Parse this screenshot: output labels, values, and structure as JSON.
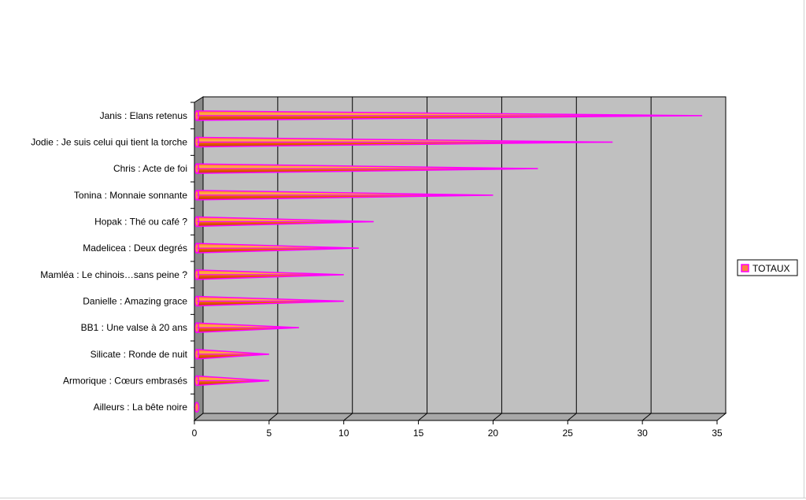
{
  "chart_data": {
    "type": "bar",
    "orientation": "horizontal",
    "style": "3d-cone",
    "categories": [
      "Janis : Elans retenus",
      "Jodie : Je suis celui qui tient la torche",
      "Chris : Acte de foi",
      "Tonina : Monnaie sonnante",
      "Hopak : Thé ou café ?",
      "Madelicea : Deux degrés",
      "Mamléa : Le chinois…sans peine ?",
      "Danielle : Amazing grace",
      "BB1 : Une valse à 20 ans",
      "Silicate : Ronde de nuit",
      "Armorique : Cœurs embrasés",
      "Ailleurs : La bête noire"
    ],
    "series": [
      {
        "name": "TOTAUX",
        "values": [
          34,
          28,
          23,
          20,
          12,
          11,
          10,
          10,
          7,
          5,
          5,
          0
        ]
      }
    ],
    "xticks": [
      "0",
      "5",
      "10",
      "15",
      "20",
      "25",
      "30",
      "35"
    ],
    "xlim": [
      0,
      35
    ],
    "grid": "vertical",
    "legend_position": "right",
    "colors": {
      "bar_fill_dark": "#e05000",
      "bar_fill_light": "#ff9a30",
      "bar_edge": "#ff00ff",
      "plot_wall": "#c0c0c0",
      "plot_floor": "#a8a8a8",
      "plot_side": "#808080",
      "gridline": "#000000"
    }
  }
}
